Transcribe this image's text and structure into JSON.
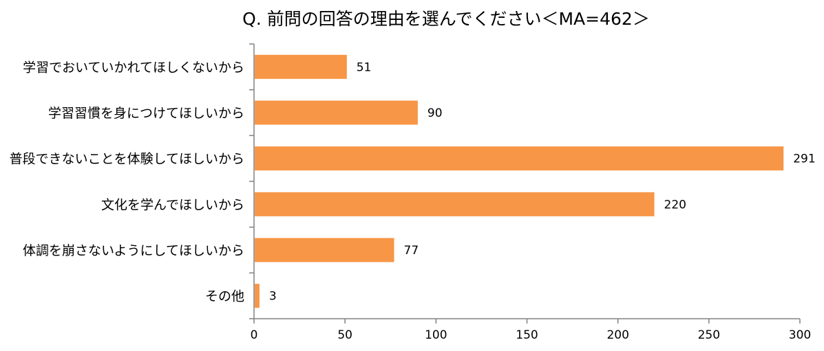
{
  "chart_data": {
    "type": "bar",
    "orientation": "horizontal",
    "title": "Q. 前問の回答の理由を選んでください＜MA=462＞",
    "categories": [
      "学習でおいていかれてほしくないから",
      "学習習慣を身につけてほしいから",
      "普段できないことを体験してほしいから",
      "文化を学んでほしいから",
      "体調を崩さないようにしてほしいから",
      "その他"
    ],
    "values": [
      51,
      90,
      291,
      220,
      77,
      3
    ],
    "xlim": [
      0,
      300
    ],
    "xticks": [
      0,
      50,
      100,
      150,
      200,
      250,
      300
    ],
    "xlabel": "",
    "ylabel": "",
    "bar_color": "#F79646",
    "grid": false,
    "legend": "none",
    "data_labels": true
  }
}
